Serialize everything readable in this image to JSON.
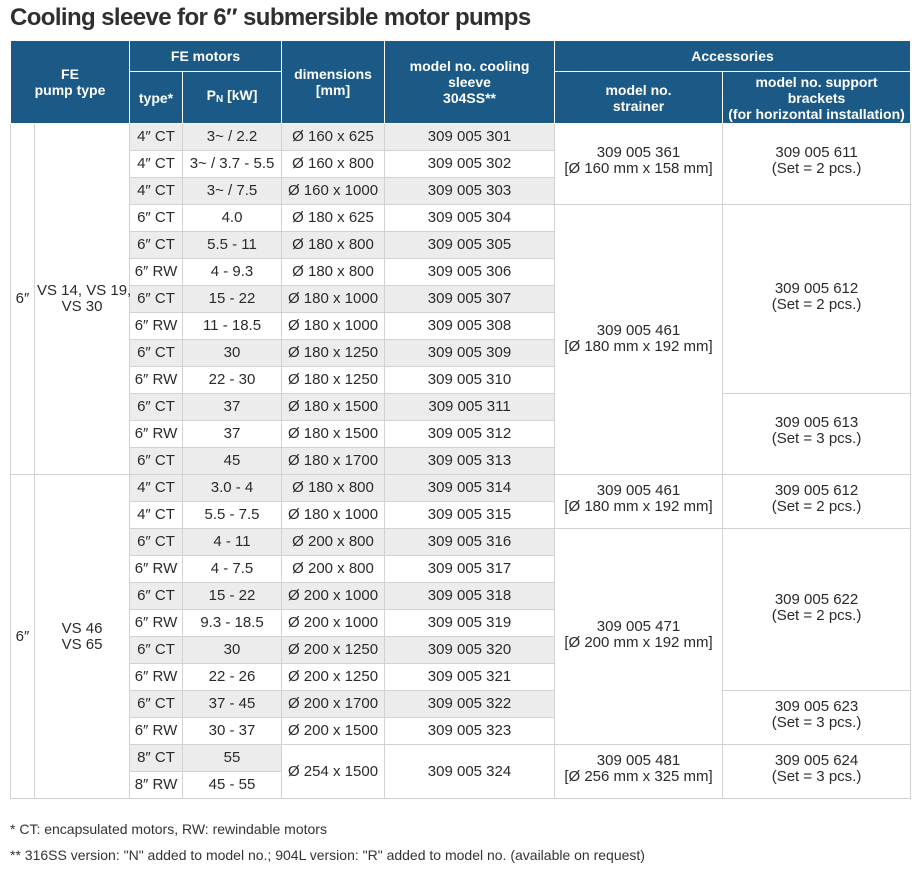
{
  "title": "Cooling sleeve for 6″ submersible motor pumps",
  "headers": {
    "fe_pump_type": [
      "FE",
      "pump type"
    ],
    "fe_motors": "FE motors",
    "type": "type*",
    "pn_main": "P",
    "pn_sub": "N",
    "pn_unit": " [kW]",
    "dimensions": [
      "dimensions",
      "[mm]"
    ],
    "model_cooling_sleeve": [
      "model no. cooling sleeve",
      "304SS**"
    ],
    "accessories": "Accessories",
    "model_strainer": [
      "model no.",
      "strainer"
    ],
    "model_brackets": [
      "model no. support brackets",
      "(for horizontal installation)"
    ]
  },
  "groups": [
    {
      "size": "6″",
      "pump_type": [
        "VS 14, VS 19,",
        "VS 30"
      ],
      "rows": [
        {
          "type": "4″ CT",
          "pn": "3~ / 2.2",
          "dim": "Ø 160 x 625",
          "model": "309 005 301"
        },
        {
          "type": "4″ CT",
          "pn": "3~ / 3.7 - 5.5",
          "dim": "Ø 160 x 800",
          "model": "309 005 302"
        },
        {
          "type": "4″ CT",
          "pn": "3~ / 7.5",
          "dim": "Ø 160 x 1000",
          "model": "309 005 303"
        },
        {
          "type": "6″ CT",
          "pn": "4.0",
          "dim": "Ø 180 x 625",
          "model": "309 005 304"
        },
        {
          "type": "6″ CT",
          "pn": "5.5 - 11",
          "dim": "Ø 180 x 800",
          "model": "309 005 305"
        },
        {
          "type": "6″ RW",
          "pn": "4 - 9.3",
          "dim": "Ø 180 x 800",
          "model": "309 005 306"
        },
        {
          "type": "6″ CT",
          "pn": "15 - 22",
          "dim": "Ø 180 x 1000",
          "model": "309 005 307"
        },
        {
          "type": "6″ RW",
          "pn": "11 - 18.5",
          "dim": "Ø 180 x 1000",
          "model": "309 005 308"
        },
        {
          "type": "6″ CT",
          "pn": "30",
          "dim": "Ø 180 x 1250",
          "model": "309 005 309"
        },
        {
          "type": "6″ RW",
          "pn": "22 - 30",
          "dim": "Ø 180 x 1250",
          "model": "309 005 310"
        },
        {
          "type": "6″ CT",
          "pn": "37",
          "dim": "Ø 180 x 1500",
          "model": "309 005 311"
        },
        {
          "type": "6″ RW",
          "pn": "37",
          "dim": "Ø 180 x 1500",
          "model": "309 005 312"
        },
        {
          "type": "6″ CT",
          "pn": "45",
          "dim": "Ø 180 x 1700",
          "model": "309 005 313"
        }
      ],
      "strainers": [
        {
          "rows": 3,
          "lines": [
            "309 005 361",
            "[Ø 160 mm x 158 mm]"
          ]
        },
        {
          "rows": 10,
          "lines": [
            "309 005 461",
            "[Ø 180 mm x 192 mm]"
          ]
        }
      ],
      "brackets": [
        {
          "rows": 3,
          "lines": [
            "309 005 611",
            "(Set = 2 pcs.)"
          ]
        },
        {
          "rows": 7,
          "lines": [
            "309 005 612",
            "(Set = 2 pcs.)"
          ]
        },
        {
          "rows": 3,
          "lines": [
            "309 005 613",
            "(Set = 3 pcs.)"
          ]
        }
      ]
    },
    {
      "size": "6″",
      "pump_type": [
        "VS 46",
        "VS 65"
      ],
      "rows": [
        {
          "type": "4″ CT",
          "pn": "3.0 - 4",
          "dim": "Ø 180 x 800",
          "model": "309 005 314"
        },
        {
          "type": "4″ CT",
          "pn": "5.5 - 7.5",
          "dim": "Ø 180 x 1000",
          "model": "309 005 315"
        },
        {
          "type": "6″ CT",
          "pn": "4 - 11",
          "dim": "Ø 200 x 800",
          "model": "309 005 316"
        },
        {
          "type": "6″ RW",
          "pn": "4 - 7.5",
          "dim": "Ø 200 x 800",
          "model": "309 005 317"
        },
        {
          "type": "6″ CT",
          "pn": "15 - 22",
          "dim": "Ø 200 x 1000",
          "model": "309 005 318"
        },
        {
          "type": "6″ RW",
          "pn": "9.3 - 18.5",
          "dim": "Ø 200 x 1000",
          "model": "309 005 319"
        },
        {
          "type": "6″ CT",
          "pn": "30",
          "dim": "Ø 200 x 1250",
          "model": "309 005 320"
        },
        {
          "type": "6″ RW",
          "pn": "22 - 26",
          "dim": "Ø 200 x 1250",
          "model": "309 005 321"
        },
        {
          "type": "6″ CT",
          "pn": "37 - 45",
          "dim": "Ø 200 x 1700",
          "model": "309 005 322"
        },
        {
          "type": "6″ RW",
          "pn": "30 - 37",
          "dim": "Ø 200 x 1500",
          "model": "309 005 323"
        },
        {
          "type": "8″ CT",
          "pn": "55",
          "dim": "Ø 254 x 1500",
          "model": "309 005 324"
        },
        {
          "type": "8″ RW",
          "pn": "45 - 55"
        }
      ],
      "strainers": [
        {
          "rows": 2,
          "lines": [
            "309 005 461",
            "[Ø 180 mm x 192 mm]"
          ]
        },
        {
          "rows": 8,
          "lines": [
            "309 005 471",
            "[Ø 200 mm x 192 mm]"
          ]
        },
        {
          "rows": 2,
          "lines": [
            "309 005 481",
            "[Ø 256 mm x 325 mm]"
          ]
        }
      ],
      "brackets": [
        {
          "rows": 2,
          "lines": [
            "309 005 612",
            "(Set = 2 pcs.)"
          ]
        },
        {
          "rows": 6,
          "lines": [
            "309 005 622",
            "(Set = 2 pcs.)"
          ]
        },
        {
          "rows": 2,
          "lines": [
            "309 005 623",
            "(Set = 3 pcs.)"
          ]
        },
        {
          "rows": 2,
          "lines": [
            "309 005 624",
            "(Set = 3 pcs.)"
          ]
        }
      ]
    }
  ],
  "footnotes": [
    "* CT: encapsulated motors, RW: rewindable motors",
    "** 316SS version: \"N\" added to model no.; 904L version: \"R\" added to model no. (available on request)"
  ]
}
